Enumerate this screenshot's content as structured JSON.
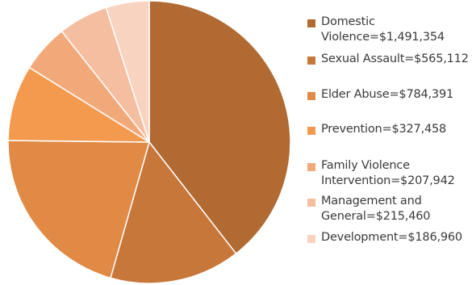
{
  "chart_data": {
    "type": "pie",
    "start_angle_deg": 0,
    "direction": "clockwise",
    "legend_position": "right",
    "slices": [
      {
        "label": "Domestic\nViolence=$1,491,354",
        "name": "Domestic Violence",
        "value": 1491354,
        "color": "#b06a32"
      },
      {
        "label": "Sexual Assault=$565,112",
        "name": "Sexual Assault",
        "value": 565112,
        "color": "#c8773a"
      },
      {
        "label": "Elder Abuse=$784,391",
        "name": "Elder Abuse",
        "value": 784391,
        "color": "#e08a45"
      },
      {
        "label": "Prevention=$327,458",
        "name": "Prevention",
        "value": 327458,
        "color": "#f39a4f"
      },
      {
        "label": "Family Violence\nIntervention=$207,942",
        "name": "Family Violence Intervention",
        "value": 207942,
        "color": "#f2a97a"
      },
      {
        "label": "Management and\nGeneral=$215,460",
        "name": "Management and General",
        "value": 215460,
        "color": "#f5bea0"
      },
      {
        "label": "Development=$186,960",
        "name": "Development",
        "value": 186960,
        "color": "#f8d3c0"
      }
    ]
  }
}
